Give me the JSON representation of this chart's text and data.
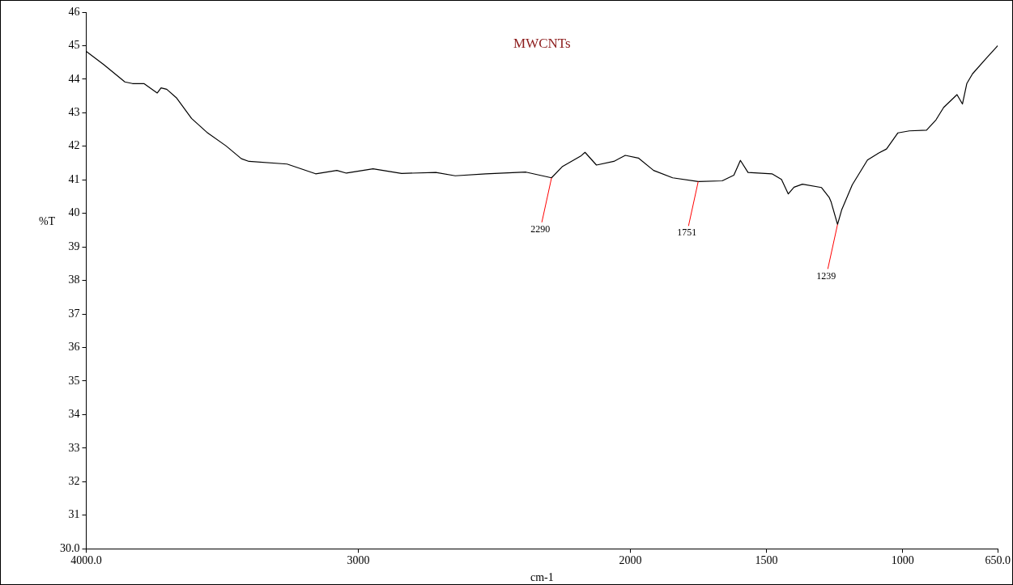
{
  "chart_data": {
    "type": "line",
    "title": "MWCNTs",
    "xlabel": "cm-1",
    "ylabel": "%T",
    "x": [
      4000,
      3936,
      3858,
      3830,
      3788,
      3739,
      3725,
      3704,
      3669,
      3613,
      3557,
      3486,
      3430,
      3402,
      3262,
      3157,
      3079,
      3044,
      2946,
      2841,
      2715,
      2644,
      2532,
      2384,
      2290,
      2251,
      2181,
      2167,
      2125,
      2061,
      2019,
      1971,
      1915,
      1845,
      1751,
      1663,
      1620,
      1596,
      1568,
      1480,
      1445,
      1420,
      1399,
      1368,
      1298,
      1270,
      1263,
      1239,
      1224,
      1185,
      1129,
      1087,
      1059,
      1017,
      975,
      912,
      877,
      849,
      800,
      780,
      764,
      743,
      694,
      650
    ],
    "series": [
      {
        "color": "#000000",
        "values": [
          44.83,
          44.44,
          43.92,
          43.87,
          43.87,
          43.59,
          43.74,
          43.7,
          43.45,
          42.83,
          42.42,
          42.01,
          41.63,
          41.55,
          41.47,
          41.18,
          41.28,
          41.2,
          41.33,
          41.19,
          41.22,
          41.12,
          41.18,
          41.23,
          41.06,
          41.39,
          41.72,
          41.82,
          41.44,
          41.55,
          41.73,
          41.65,
          41.28,
          41.06,
          40.95,
          40.97,
          41.14,
          41.58,
          41.22,
          41.18,
          41.01,
          40.58,
          40.78,
          40.87,
          40.77,
          40.48,
          40.35,
          39.67,
          40.1,
          40.85,
          41.59,
          41.8,
          41.92,
          42.4,
          42.46,
          42.48,
          42.79,
          43.16,
          43.54,
          43.26,
          43.87,
          44.16,
          44.61,
          45.0
        ]
      }
    ],
    "xlim": [
      4000,
      650
    ],
    "xticks": [
      {
        "value": 4000,
        "label": "4000.0"
      },
      3000,
      2000,
      1500,
      1000,
      {
        "value": 650,
        "label": "650.0"
      }
    ],
    "ylim": [
      30,
      46
    ],
    "yticks": [
      {
        "value": 30,
        "label": "30.0"
      },
      31,
      32,
      33,
      34,
      35,
      36,
      37,
      38,
      39,
      40,
      41,
      42,
      43,
      44,
      45,
      46
    ],
    "annotations": [
      {
        "text": "2290",
        "x": 2290,
        "y": 41.06
      },
      {
        "text": "1751",
        "x": 1751,
        "y": 40.95
      },
      {
        "text": "1239",
        "x": 1239,
        "y": 39.67
      }
    ],
    "grid": false,
    "legend": false,
    "marker": "none",
    "line_style": "solid"
  }
}
